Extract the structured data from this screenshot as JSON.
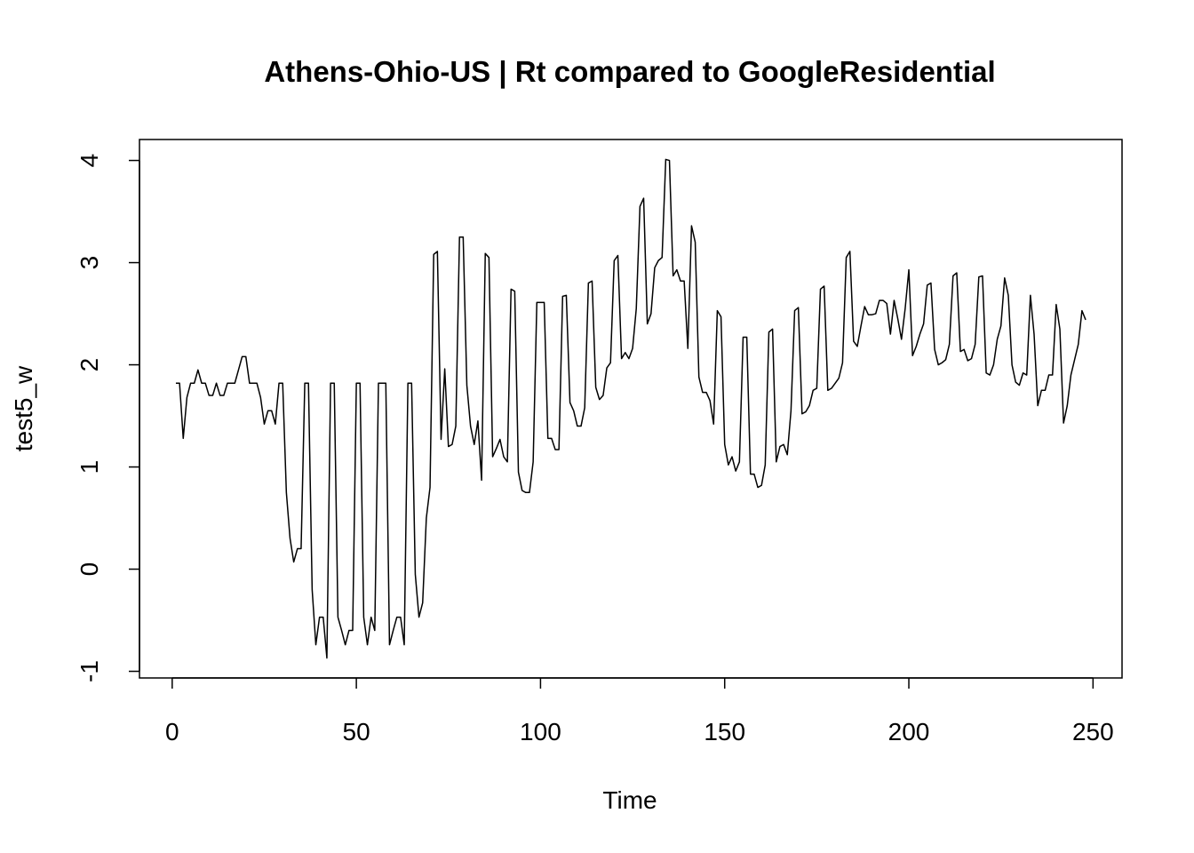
{
  "chart_data": {
    "type": "line",
    "title": "Athens-Ohio-US | Rt compared to GoogleResidential",
    "x_label": "Time",
    "y_label": "test5_w",
    "x": [
      1,
      2,
      3,
      4,
      5,
      6,
      7,
      8,
      9,
      10,
      11,
      12,
      13,
      14,
      15,
      16,
      17,
      18,
      19,
      20,
      21,
      22,
      23,
      24,
      25,
      26,
      27,
      28,
      29,
      30,
      31,
      32,
      33,
      34,
      35,
      36,
      37,
      38,
      39,
      40,
      41,
      42,
      43,
      44,
      45,
      46,
      47,
      48,
      49,
      50,
      51,
      52,
      53,
      54,
      55,
      56,
      57,
      58,
      59,
      60,
      61,
      62,
      63,
      64,
      65,
      66,
      67,
      68,
      69,
      70,
      71,
      72,
      73,
      74,
      75,
      76,
      77,
      78,
      79,
      80,
      81,
      82,
      83,
      84,
      85,
      86,
      87,
      88,
      89,
      90,
      91,
      92,
      93,
      94,
      95,
      96,
      97,
      98,
      99,
      100,
      101,
      102,
      103,
      104,
      105,
      106,
      107,
      108,
      109,
      110,
      111,
      112,
      113,
      114,
      115,
      116,
      117,
      118,
      119,
      120,
      121,
      122,
      123,
      124,
      125,
      126,
      127,
      128,
      129,
      130,
      131,
      132,
      133,
      134,
      135,
      136,
      137,
      138,
      139,
      140,
      141,
      142,
      143,
      144,
      145,
      146,
      147,
      148,
      149,
      150,
      151,
      152,
      153,
      154,
      155,
      156,
      157,
      158,
      159,
      160,
      161,
      162,
      163,
      164,
      165,
      166,
      167,
      168,
      169,
      170,
      171,
      172,
      173,
      174,
      175,
      176,
      177,
      178,
      179,
      180,
      181,
      182,
      183,
      184,
      185,
      186,
      187,
      188,
      189,
      190,
      191,
      192,
      193,
      194,
      195,
      196,
      197,
      198,
      199,
      200,
      201,
      202,
      203,
      204,
      205,
      206,
      207,
      208,
      209,
      210,
      211,
      212,
      213,
      214,
      215,
      216,
      217,
      218,
      219,
      220,
      221,
      222,
      223,
      224,
      225,
      226,
      227,
      228,
      229,
      230,
      231,
      232,
      233,
      234,
      235,
      236,
      237,
      238,
      239,
      240,
      241,
      242,
      243,
      244,
      245,
      246,
      247,
      248
    ],
    "series": [
      {
        "name": "test5_w",
        "color": "#000000",
        "values": [
          1.82,
          1.82,
          1.28,
          1.68,
          1.82,
          1.82,
          1.95,
          1.82,
          1.82,
          1.7,
          1.7,
          1.82,
          1.7,
          1.7,
          1.82,
          1.82,
          1.82,
          1.95,
          2.08,
          2.08,
          1.82,
          1.82,
          1.82,
          1.68,
          1.42,
          1.55,
          1.55,
          1.42,
          1.82,
          1.82,
          0.75,
          0.3,
          0.07,
          0.2,
          0.2,
          1.82,
          1.82,
          -0.2,
          -0.74,
          -0.47,
          -0.47,
          -0.87,
          1.82,
          1.82,
          -0.47,
          -0.6,
          -0.74,
          -0.6,
          -0.6,
          1.82,
          1.82,
          -0.47,
          -0.74,
          -0.47,
          -0.6,
          1.82,
          1.82,
          1.82,
          -0.74,
          -0.6,
          -0.47,
          -0.47,
          -0.74,
          1.82,
          1.82,
          -0.05,
          -0.47,
          -0.33,
          0.5,
          0.8,
          3.08,
          3.11,
          1.27,
          1.96,
          1.2,
          1.22,
          1.4,
          3.25,
          3.25,
          1.8,
          1.4,
          1.22,
          1.45,
          0.87,
          3.09,
          3.05,
          1.1,
          1.18,
          1.27,
          1.1,
          1.05,
          2.74,
          2.72,
          0.95,
          0.77,
          0.75,
          0.75,
          1.05,
          2.61,
          2.61,
          2.61,
          1.28,
          1.28,
          1.17,
          1.17,
          2.67,
          2.68,
          1.63,
          1.55,
          1.4,
          1.4,
          1.58,
          2.8,
          2.82,
          1.78,
          1.66,
          1.7,
          1.97,
          2.02,
          3.02,
          3.07,
          2.06,
          2.12,
          2.06,
          2.16,
          2.55,
          3.55,
          3.63,
          2.4,
          2.5,
          2.95,
          3.02,
          3.05,
          4.01,
          4.0,
          2.87,
          2.93,
          2.82,
          2.82,
          2.16,
          3.36,
          3.2,
          1.88,
          1.73,
          1.73,
          1.65,
          1.42,
          2.53,
          2.47,
          1.22,
          1.02,
          1.1,
          0.96,
          1.05,
          2.27,
          2.27,
          0.93,
          0.93,
          0.8,
          0.82,
          1.02,
          2.32,
          2.35,
          1.05,
          1.2,
          1.22,
          1.12,
          1.55,
          2.53,
          2.56,
          1.52,
          1.54,
          1.6,
          1.75,
          1.77,
          2.74,
          2.77,
          1.75,
          1.77,
          1.82,
          1.87,
          2.02,
          3.05,
          3.11,
          2.23,
          2.18,
          2.38,
          2.57,
          2.49,
          2.49,
          2.5,
          2.63,
          2.63,
          2.6,
          2.3,
          2.63,
          2.45,
          2.25,
          2.55,
          2.93,
          2.09,
          2.18,
          2.3,
          2.4,
          2.78,
          2.8,
          2.15,
          2.0,
          2.02,
          2.05,
          2.2,
          2.87,
          2.9,
          2.13,
          2.15,
          2.04,
          2.06,
          2.2,
          2.86,
          2.87,
          1.92,
          1.9,
          2.0,
          2.25,
          2.38,
          2.85,
          2.68,
          2.0,
          1.83,
          1.8,
          1.92,
          1.9,
          2.68,
          2.3,
          1.6,
          1.75,
          1.75,
          1.9,
          1.9,
          2.59,
          2.35,
          1.43,
          1.6,
          1.9,
          2.05,
          2.2,
          2.53,
          2.44
        ]
      }
    ],
    "xlim": [
      -8.88,
      257.88
    ],
    "ylim": [
      -1.065,
      4.205
    ],
    "xticks": [
      0,
      50,
      100,
      150,
      200,
      250
    ],
    "yticks": [
      -1,
      0,
      1,
      2,
      3,
      4
    ]
  }
}
